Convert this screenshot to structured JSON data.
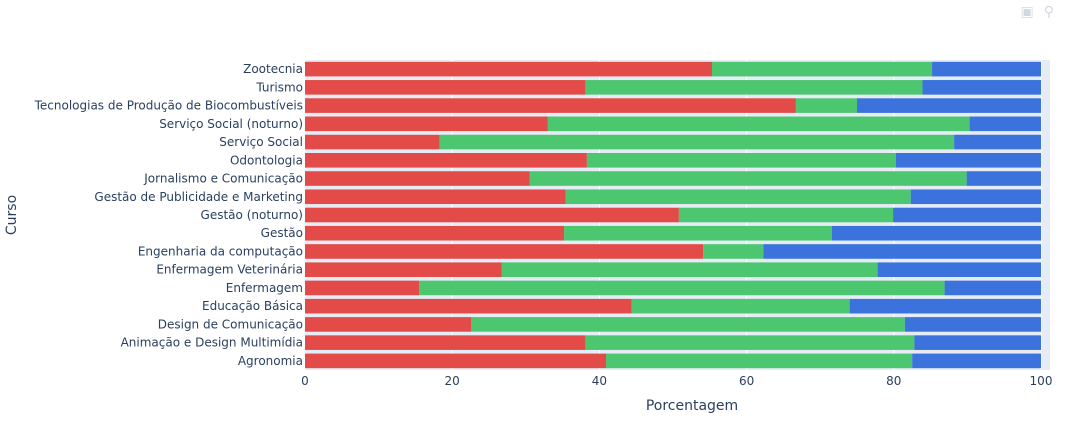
{
  "chart_data": {
    "type": "bar",
    "orientation": "horizontal",
    "barmode": "stack",
    "xlabel": "Porcentagem",
    "ylabel": "Curso",
    "xlim": [
      0,
      100
    ],
    "xticks": [
      "0",
      "20",
      "40",
      "60",
      "80",
      "100"
    ],
    "grid": true,
    "categories": [
      "Agronomia",
      "Animação e Design Multimídia",
      "Design de Comunicação",
      "Educação Básica",
      "Enfermagem",
      "Enfermagem Veterinária",
      "Engenharia da computação",
      "Gestão",
      "Gestão (noturno)",
      "Gestão de Publicidade e Marketing",
      "Jornalismo e Comunicação",
      "Odontologia",
      "Serviço Social",
      "Serviço Social (noturno)",
      "Tecnologias de Produção de Biocombustíveis",
      "Turismo",
      "Zootecnia"
    ],
    "series": [
      {
        "color": "#e24b47",
        "values": [
          40.9,
          38.1,
          22.6,
          44.4,
          15.5,
          26.7,
          54.1,
          35.2,
          50.8,
          35.4,
          30.5,
          38.3,
          18.3,
          33.0,
          66.7,
          38.1,
          55.3
        ]
      },
      {
        "color": "#4dc670",
        "values": [
          41.6,
          44.7,
          58.9,
          29.6,
          71.4,
          51.1,
          8.2,
          36.4,
          29.1,
          46.9,
          59.4,
          42.0,
          69.9,
          57.3,
          8.3,
          45.8,
          29.9
        ]
      },
      {
        "color": "#3b72db",
        "values": [
          17.5,
          17.2,
          18.5,
          26.0,
          13.1,
          22.2,
          37.7,
          28.4,
          20.1,
          17.7,
          10.1,
          19.7,
          11.8,
          9.7,
          25.0,
          16.1,
          14.8
        ]
      }
    ]
  },
  "modebar": {
    "icons": [
      "camera-icon",
      "zoom-icon"
    ]
  }
}
